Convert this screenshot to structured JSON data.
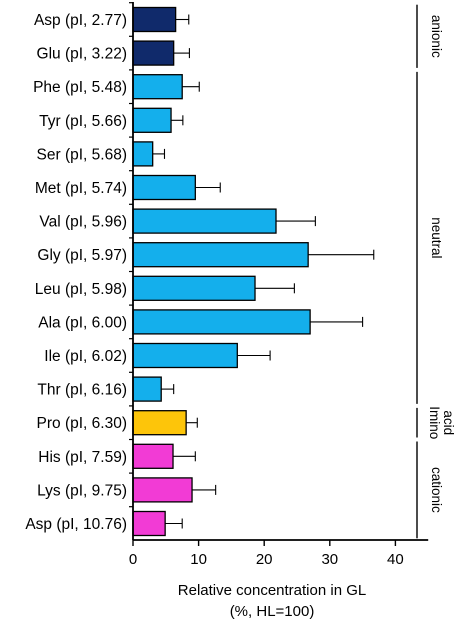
{
  "chart_data": {
    "type": "bar",
    "orientation": "horizontal",
    "categories": [
      "Asp (pI, 2.77)",
      "Glu (pI, 3.22)",
      "Phe (pI, 5.48)",
      "Tyr (pI, 5.66)",
      "Ser (pI, 5.68)",
      "Met (pI, 5.74)",
      "Val (pI, 5.96)",
      "Gly (pI, 5.97)",
      "Leu (pI, 5.98)",
      "Ala (pI, 6.00)",
      "Ile (pI, 6.02)",
      "Thr (pI, 6.16)",
      "Pro (pI, 6.30)",
      "His (pI, 7.59)",
      "Lys (pI, 9.75)",
      "Asp (pI, 10.76)"
    ],
    "values": [
      6.5,
      6.2,
      7.5,
      5.8,
      3.0,
      9.5,
      21.8,
      26.7,
      18.6,
      27.0,
      15.9,
      4.3,
      8.1,
      6.1,
      9.0,
      4.9
    ],
    "errors": [
      2.0,
      2.4,
      2.6,
      1.8,
      1.8,
      3.8,
      6.0,
      10.0,
      6.0,
      8.0,
      5.0,
      1.9,
      1.7,
      3.4,
      3.6,
      2.6
    ],
    "bar_colors": [
      "#102a6b",
      "#102a6b",
      "#14afec",
      "#14afec",
      "#14afec",
      "#14afec",
      "#14afec",
      "#14afec",
      "#14afec",
      "#14afec",
      "#14afec",
      "#14afec",
      "#fdc50a",
      "#f23bd5",
      "#f23bd5",
      "#f23bd5"
    ],
    "xlabel_line1": "Relative concentration in GL",
    "xlabel_line2": "(%, HL=100)",
    "ylabel": "",
    "xticks": [
      "0",
      "10",
      "20",
      "30",
      "40"
    ],
    "xtick_values": [
      0,
      10,
      20,
      30,
      40
    ],
    "xlim": [
      0,
      45
    ],
    "grid": false,
    "groups": [
      {
        "label": "anionic",
        "start": 0,
        "end": 1
      },
      {
        "label": "neutral",
        "start": 2,
        "end": 11
      },
      {
        "label_line1": "Imino",
        "label_line2": "acid",
        "start": 12,
        "end": 12
      },
      {
        "label": "cationic",
        "start": 13,
        "end": 15
      }
    ],
    "colors": {
      "anionic": "#102a6b",
      "neutral": "#14afec",
      "imino": "#fdc50a",
      "cationic": "#f23bd5",
      "axis": "#000000"
    }
  }
}
